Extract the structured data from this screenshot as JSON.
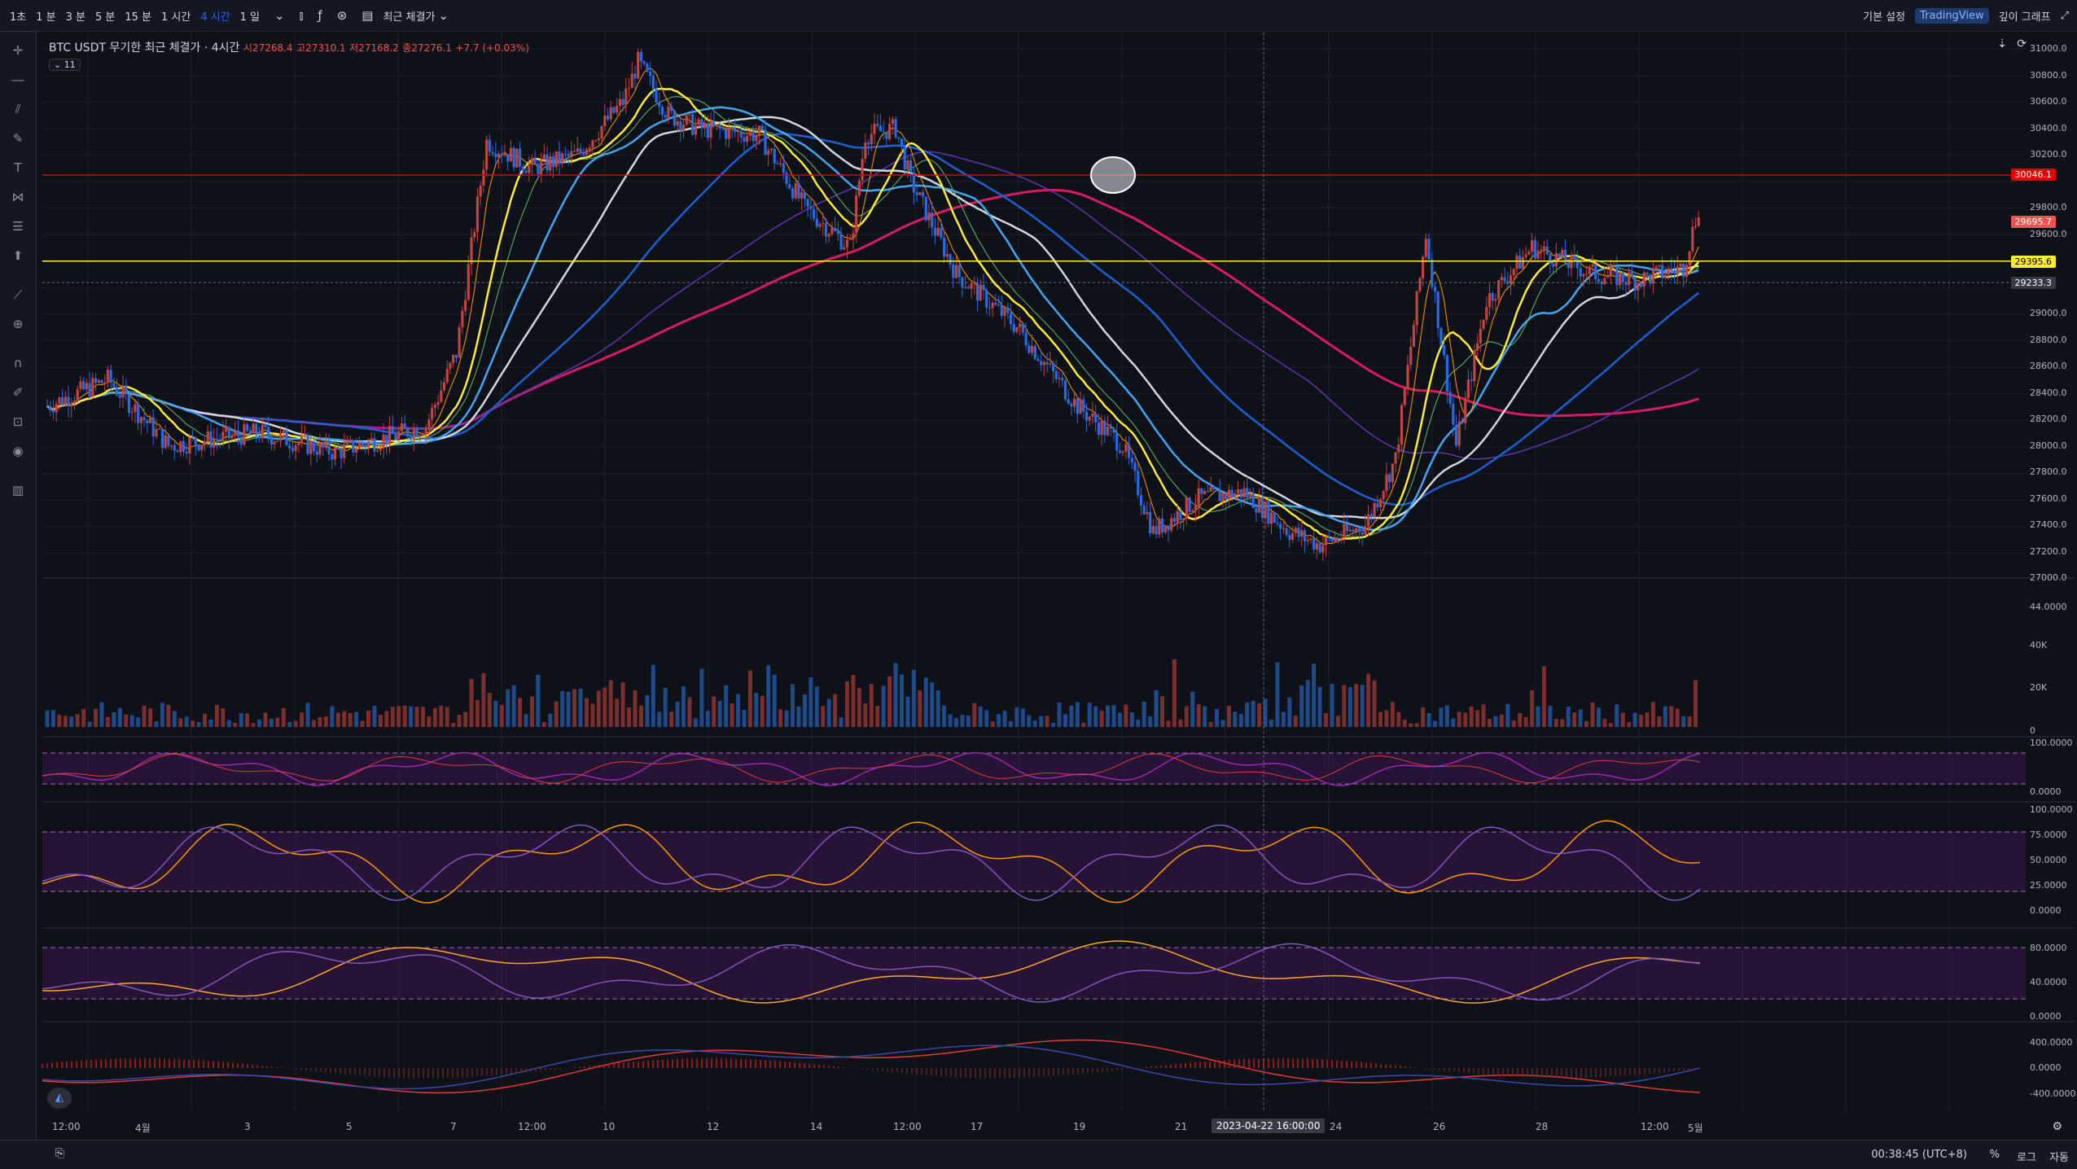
{
  "toolbar": {
    "timeframes": [
      "1초",
      "1 분",
      "3 분",
      "5 분",
      "15 분",
      "1 시간",
      "4 시간",
      "1 일"
    ],
    "active_timeframe": "4 시간",
    "chart_type_label": "최근 체결가",
    "right_buttons": {
      "settings": "기본 설정",
      "tradingview": "TradingView",
      "depth": "깊이 그래프"
    }
  },
  "legend": {
    "symbol": "BTC USDT 무기한 최근 체결가 · 4시간",
    "open": "시27268.4",
    "high": "고27310.1",
    "low": "저27168.2",
    "close": "종27276.1",
    "change": "+7.7 (+0.03%)",
    "indicator_toggle": "11"
  },
  "price_labels": {
    "red_line": "30046.1",
    "last": "29695.7",
    "yellow_line": "29395.6",
    "crosshair": "29233.3"
  },
  "y_axis_main": [
    "31000.0",
    "30800.0",
    "30600.0",
    "30400.0",
    "30200.0",
    "29800.0",
    "29600.0",
    "29000.0",
    "28800.0",
    "28600.0",
    "28400.0",
    "28200.0",
    "28000.0",
    "27800.0",
    "27600.0",
    "27400.0",
    "27200.0",
    "27000.0"
  ],
  "y_axis_44": "44.0000",
  "y_axis_volume": [
    "40K",
    "20K",
    "0"
  ],
  "y_axis_rsi": [
    "100.0000",
    "0.0000"
  ],
  "y_axis_stoch": [
    "100.0000",
    "75.0000",
    "50.0000",
    "25.0000",
    "0.0000"
  ],
  "y_axis_osc": [
    "80.0000",
    "40.0000",
    "0.0000"
  ],
  "y_axis_macd": [
    "400.0000",
    "0.0000",
    "-400.0000"
  ],
  "x_axis": [
    "12:00",
    "4월",
    "3",
    "5",
    "7",
    "12:00",
    "10",
    "12",
    "14",
    "12:00",
    "17",
    "19",
    "21",
    "24",
    "26",
    "28",
    "12:00",
    "5월"
  ],
  "crosshair_date": "2023-04-22   16:00:00",
  "status": {
    "clock": "00:38:45 (UTC+8)",
    "percent": "%",
    "log": "로그",
    "auto": "자동"
  },
  "colors": {
    "bg": "#0f1118",
    "up": "#ef5350",
    "down": "#2962ff",
    "ma_yellow": "#ffeb3b",
    "ma_lightblue": "#42a5f5",
    "ma_gray": "#cfd8dc",
    "ma_blue": "#1e5fd6",
    "ma_crimson": "#d81b60",
    "ma_purple": "#5e35b1",
    "ma_orange": "#ff9800",
    "ma_green": "#66bb6a"
  },
  "icons": [
    "crosshair-icon",
    "trend-line-icon",
    "fib-icon",
    "brush-icon",
    "text-icon",
    "pattern-icon",
    "measure-icon",
    "arrow-icon",
    "ruler-icon",
    "zoom-icon",
    "magnet-icon",
    "lock-draw-icon",
    "lock-icon",
    "eye-icon",
    "trash-icon"
  ]
}
